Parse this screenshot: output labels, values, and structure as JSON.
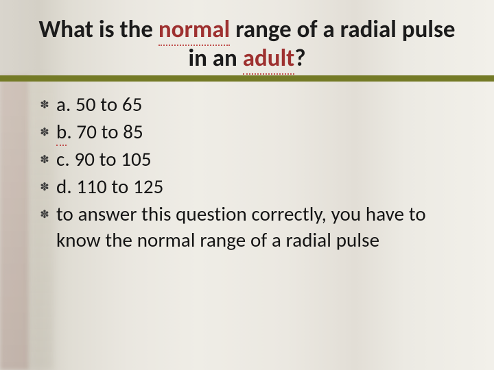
{
  "title": {
    "segments": [
      {
        "text": "What is the ",
        "err": false
      },
      {
        "text": "normal",
        "err": true
      },
      {
        "text": " range of a radial pulse in an ",
        "err": false
      },
      {
        "text": "adult",
        "err": true
      },
      {
        "text": "?",
        "err": false
      }
    ],
    "fontsize": 35,
    "color": "#1b1b1b",
    "err_color": "#9e3130"
  },
  "accent_band_color": "#747a26",
  "bullet_glyph": "✽",
  "items": [
    {
      "prefix": "a. ",
      "text": "50 to 65",
      "underline_prefix": false
    },
    {
      "prefix": "b",
      "text": ". 70 to 85",
      "underline_prefix": true
    },
    {
      "prefix": "c. ",
      "text": "90 to 105",
      "underline_prefix": false
    },
    {
      "prefix": "d. ",
      "text": "110 to 125",
      "underline_prefix": false
    },
    {
      "prefix": "",
      "text": "to answer this question correctly, you have to know the normal range of a radial pulse",
      "underline_prefix": false
    }
  ],
  "body_fontsize": 29,
  "body_color": "#141414",
  "background_colors": {
    "base": "#e8e6e2"
  }
}
